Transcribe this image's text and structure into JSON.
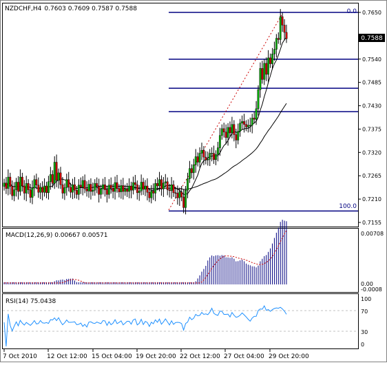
{
  "main": {
    "symbol_label": "NZDCHF,H4",
    "ohlc_label": "0.7603 0.7609 0.7587 0.7588",
    "price_ticks": [
      "0.7650",
      "0.7595",
      "0.7540",
      "0.7485",
      "0.7430",
      "0.7375",
      "0.7320",
      "0.7265",
      "0.7210",
      "0.7155"
    ],
    "current_price_label": "0.7588",
    "fib_top_label": "0.0",
    "fib_bottom_label": "100.0"
  },
  "macd": {
    "label": "MACD(12,26,9) 0.00667 0.00571",
    "ticks": [
      "0.00708",
      "0.00",
      "-0.0008"
    ]
  },
  "rsi": {
    "label": "RSI(14) 75.0438",
    "ticks": [
      "100",
      "70",
      "30",
      "0"
    ]
  },
  "time_axis": {
    "labels": [
      "7 Oct 2010",
      "12 Oct 12:00",
      "15 Oct 04:00",
      "19 Oct 20:00",
      "22 Oct 12:00",
      "27 Oct 04:00",
      "29 Oct 20:00"
    ]
  },
  "colors": {
    "fib_line": "#000080",
    "bull_candle": "#00aa00",
    "bear_candle": "#cc0000",
    "rsi_line": "#1e90ff",
    "ma_line": "#000000",
    "signal_line": "#cc0000",
    "macd_bar": "#000080"
  },
  "chart_data": {
    "type": "candlestick",
    "instrument": "NZDCHF",
    "timeframe": "H4",
    "last_ohlc": {
      "open": 0.7603,
      "high": 0.7609,
      "low": 0.7587,
      "close": 0.7588
    },
    "fib_retracement": {
      "high": 0.765,
      "low": 0.7182
    },
    "ylim": [
      0.7155,
      0.7665
    ],
    "macd": {
      "macd": 0.00667,
      "signal": 0.00571
    },
    "rsi": {
      "value": 75.0438,
      "levels": [
        70,
        30
      ]
    },
    "closes": [
      0.7248,
      0.7235,
      0.7262,
      0.724,
      0.7218,
      0.7232,
      0.725,
      0.7228,
      0.7262,
      0.7241,
      0.7224,
      0.7247,
      0.7232,
      0.7214,
      0.7236,
      0.7256,
      0.7243,
      0.7226,
      0.7238,
      0.7226,
      0.7241,
      0.7225,
      0.7251,
      0.7268,
      0.7247,
      0.7297,
      0.7254,
      0.7272,
      0.7244,
      0.7224,
      0.7237,
      0.7256,
      0.7238,
      0.7226,
      0.7244,
      0.7231,
      0.7221,
      0.7243,
      0.7238,
      0.7254,
      0.7234,
      0.7229,
      0.7245,
      0.7228,
      0.7231,
      0.7247,
      0.724,
      0.7221,
      0.7234,
      0.7244,
      0.7232,
      0.7221,
      0.7243,
      0.7236,
      0.7228,
      0.7249,
      0.7235,
      0.7227,
      0.7242,
      0.7228,
      0.7234,
      0.7228,
      0.7241,
      0.7231,
      0.7249,
      0.7244,
      0.7225,
      0.7229,
      0.725,
      0.7233,
      0.7241,
      0.7226,
      0.7213,
      0.7229,
      0.7224,
      0.7247,
      0.7241,
      0.7256,
      0.7234,
      0.7248,
      0.7251,
      0.7232,
      0.723,
      0.7244,
      0.7225,
      0.7224,
      0.7213,
      0.7227,
      0.7215,
      0.719,
      0.7231,
      0.7258,
      0.7282,
      0.7272,
      0.7291,
      0.731,
      0.7297,
      0.7318,
      0.7325,
      0.7309,
      0.7302,
      0.7304,
      0.7318,
      0.7318,
      0.7303,
      0.7315,
      0.7331,
      0.736,
      0.7376,
      0.7368,
      0.7355,
      0.7379,
      0.7366,
      0.7386,
      0.7362,
      0.7349,
      0.737,
      0.7389,
      0.7393,
      0.7386,
      0.738,
      0.7384,
      0.7384,
      0.7401,
      0.7398,
      0.7423,
      0.7468,
      0.7518,
      0.7492,
      0.753,
      0.7504,
      0.7543,
      0.7529,
      0.7552,
      0.7563,
      0.7589,
      0.7586,
      0.764,
      0.762,
      0.7603,
      0.7588
    ]
  }
}
